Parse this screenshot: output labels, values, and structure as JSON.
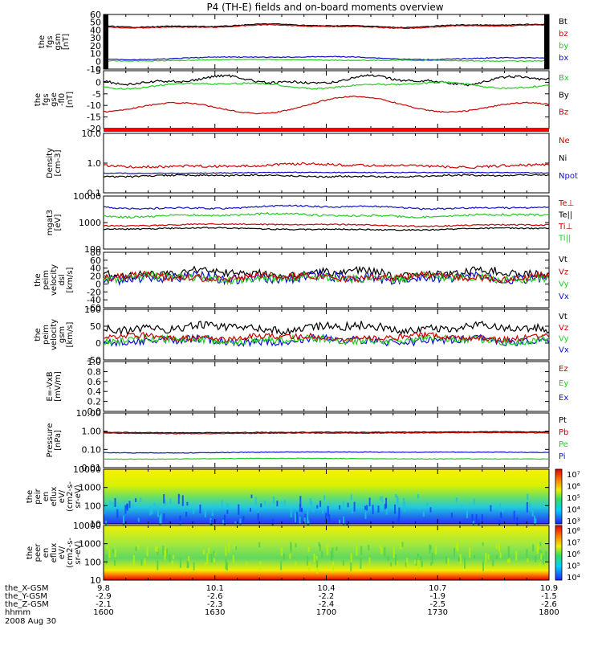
{
  "title": "P4 (TH-E) fields and on-board moments overview",
  "colors": {
    "black": "#000000",
    "red": "#cc0000",
    "green": "#22cc22",
    "blue": "#1010cc"
  },
  "date_label": "2008 Aug 30",
  "orbit_table": {
    "row_labels": [
      "the_X-GSM",
      "the_Y-GSM",
      "the_Z-GSM",
      "hhmm"
    ],
    "columns": [
      [
        "9.8",
        "-2.9",
        "-2.1",
        "1600"
      ],
      [
        "10.1",
        "-2.6",
        "-2.3",
        "1630"
      ],
      [
        "10.4",
        "-2.2",
        "-2.4",
        "1700"
      ],
      [
        "10.7",
        "-1.9",
        "-2.5",
        "1730"
      ],
      [
        "10.9",
        "-1.5",
        "-2.6",
        "1800"
      ]
    ]
  },
  "panels": [
    {
      "ylabel": [
        "the",
        "fgs",
        "gsm",
        "[nT]"
      ],
      "ticks": [
        "60",
        "50",
        "40",
        "30",
        "20",
        "10",
        "0",
        "-10"
      ],
      "legend": [
        {
          "t": "Bt",
          "c": "black"
        },
        {
          "t": "bz",
          "c": "red"
        },
        {
          "t": "by",
          "c": "green"
        },
        {
          "t": "bx",
          "c": "blue"
        }
      ]
    },
    {
      "ylabel": [
        "the",
        "fgs",
        "gse",
        "-fl0",
        "[nT]"
      ],
      "ticks": [
        "5",
        "0",
        "-5",
        "-10",
        "-15",
        "-20"
      ],
      "legend": [
        {
          "t": "Bx",
          "c": "green"
        },
        {
          "t": "By",
          "c": "black"
        },
        {
          "t": "Bz",
          "c": "red"
        }
      ]
    },
    {
      "ylabel": [
        "Density",
        "[cm-3]"
      ],
      "ticks": [
        "10.0",
        "1.0",
        "0.1"
      ],
      "legend": [
        {
          "t": "Ne",
          "c": "red"
        },
        {
          "t": "Ni",
          "c": "black"
        },
        {
          "t": "Npot",
          "c": "blue"
        }
      ]
    },
    {
      "ylabel": [
        "mgat3",
        "[eV]"
      ],
      "ticks": [
        "10000",
        "1000",
        "100"
      ],
      "legend": [
        {
          "t": "Te⊥",
          "c": "red"
        },
        {
          "t": "Te||",
          "c": "black"
        },
        {
          "t": "Ti⊥",
          "c": "red"
        },
        {
          "t": "Ti||",
          "c": "green"
        }
      ]
    },
    {
      "ylabel": [
        "the",
        "peim",
        "velocity",
        "dsl",
        "[km/s]"
      ],
      "ticks": [
        "80",
        "60",
        "40",
        "20",
        "0",
        "-20",
        "-40",
        "-60"
      ],
      "legend": [
        {
          "t": "Vt",
          "c": "black"
        },
        {
          "t": "Vz",
          "c": "red"
        },
        {
          "t": "Vy",
          "c": "green"
        },
        {
          "t": "Vx",
          "c": "blue"
        }
      ]
    },
    {
      "ylabel": [
        "the",
        "peim",
        "velocity",
        "gsm",
        "[km/s]"
      ],
      "ticks": [
        "100",
        "50",
        "0",
        "-50"
      ],
      "legend": [
        {
          "t": "Vt",
          "c": "black"
        },
        {
          "t": "Vz",
          "c": "red"
        },
        {
          "t": "Vy",
          "c": "green"
        },
        {
          "t": "Vx",
          "c": "blue"
        }
      ]
    },
    {
      "ylabel": [
        "E=-VxB",
        "[mV/m]"
      ],
      "ticks": [
        "1.0",
        "0.8",
        "0.6",
        "0.4",
        "0.2",
        "0.0"
      ],
      "legend": [
        {
          "t": "Ez",
          "c": "red"
        },
        {
          "t": "Ey",
          "c": "green"
        },
        {
          "t": "Ex",
          "c": "blue"
        }
      ]
    },
    {
      "ylabel": [
        "Pressure",
        "[nPa]"
      ],
      "ticks": [
        "10.00",
        "1.00",
        "0.10",
        "0.01"
      ],
      "legend": [
        {
          "t": "Pt",
          "c": "black"
        },
        {
          "t": "Pb",
          "c": "red"
        },
        {
          "t": "Pe",
          "c": "green"
        },
        {
          "t": "Pi",
          "c": "blue"
        }
      ]
    },
    {
      "ylabel": [
        "the",
        "peir",
        "en",
        "eflux",
        "eV/",
        "(cm2-s-",
        "sr-eV)"
      ],
      "ticks": [
        "10000",
        "1000",
        "100",
        "10"
      ],
      "colorbar": [
        "10⁷",
        "10⁶",
        "10⁵",
        "10⁴",
        "10³"
      ]
    },
    {
      "ylabel": [
        "the",
        "peer",
        "en",
        "eflux",
        "eV/",
        "(cm2-s-",
        "sr-eV)"
      ],
      "ticks": [
        "10000",
        "1000",
        "100",
        "10"
      ],
      "colorbar": [
        "10⁸",
        "10⁷",
        "10⁶",
        "10⁵",
        "10⁴"
      ]
    }
  ],
  "chart_data": {
    "type": "line",
    "title": "P4 (TH-E) fields and on-board moments overview",
    "xlabel": "hhmm",
    "x_ticks": [
      "1600",
      "1630",
      "1700",
      "1730",
      "1800"
    ],
    "xlim": [
      "1600",
      "1800"
    ],
    "subplots": [
      {
        "ylabel": "the fgs gsm [nT]",
        "ylim": [
          -10,
          60
        ],
        "series": [
          {
            "name": "Bt",
            "approx": "~46-50"
          },
          {
            "name": "bz",
            "approx": "~45-50"
          },
          {
            "name": "by",
            "approx": "~0-2"
          },
          {
            "name": "bx",
            "approx": "~2-8"
          }
        ]
      },
      {
        "ylabel": "the fgs gse -fl0 [nT]",
        "ylim": [
          -22,
          5
        ],
        "series": [
          {
            "name": "Bx",
            "approx": "~ -1"
          },
          {
            "name": "By",
            "approx": "~ 0 to -3"
          },
          {
            "name": "Bz",
            "approx": "~ -10 to -17"
          }
        ]
      },
      {
        "ylabel": "Density [cm-3]",
        "scale": "log",
        "ylim": [
          0.1,
          10
        ],
        "series": [
          {
            "name": "Ne",
            "approx": "~0.8"
          },
          {
            "name": "Ni",
            "approx": "~0.3"
          },
          {
            "name": "Npot",
            "approx": "~0.35"
          }
        ]
      },
      {
        "ylabel": "mgat3 [eV]",
        "scale": "log",
        "ylim": [
          100,
          10000
        ],
        "series": [
          {
            "name": "Te⊥",
            "approx": "~800"
          },
          {
            "name": "Te||",
            "approx": "~3500"
          },
          {
            "name": "Ti⊥",
            "approx": "~700"
          },
          {
            "name": "Ti||",
            "approx": "~2000"
          }
        ]
      },
      {
        "ylabel": "the peim velocity dsl [km/s]",
        "ylim": [
          -60,
          80
        ],
        "series": [
          {
            "name": "Vt",
            "approx": "~10-40"
          },
          {
            "name": "Vz",
            "approx": "~0"
          },
          {
            "name": "Vy",
            "approx": "~0"
          },
          {
            "name": "Vx",
            "approx": "~0"
          }
        ]
      },
      {
        "ylabel": "the peim velocity gsm [km/s]",
        "ylim": [
          -80,
          120
        ],
        "series": [
          {
            "name": "Vt",
            "approx": "~40"
          },
          {
            "name": "Vz",
            "approx": "~0"
          },
          {
            "name": "Vy",
            "approx": "~-10"
          },
          {
            "name": "Vx",
            "approx": "~-10"
          }
        ]
      },
      {
        "ylabel": "E=-VxB [mV/m]",
        "ylim": [
          0,
          1
        ],
        "series": [
          {
            "name": "Ez"
          },
          {
            "name": "Ey"
          },
          {
            "name": "Ex"
          }
        ]
      },
      {
        "ylabel": "Pressure [nPa]",
        "scale": "log",
        "ylim": [
          0.01,
          10
        ],
        "series": [
          {
            "name": "Pt",
            "approx": "~1.0"
          },
          {
            "name": "Pb",
            "approx": "~0.95"
          },
          {
            "name": "Pe",
            "approx": "~0.03"
          },
          {
            "name": "Pi",
            "approx": "~0.08"
          }
        ]
      },
      {
        "type": "heatmap",
        "ylabel": "the peir en eflux eV/(cm2-s-sr-eV)",
        "scale": "log",
        "ylim": [
          10,
          10000
        ]
      },
      {
        "type": "heatmap",
        "ylabel": "the peer en eflux eV/(cm2-s-sr-eV)",
        "scale": "log",
        "ylim": [
          10,
          10000
        ]
      }
    ]
  }
}
